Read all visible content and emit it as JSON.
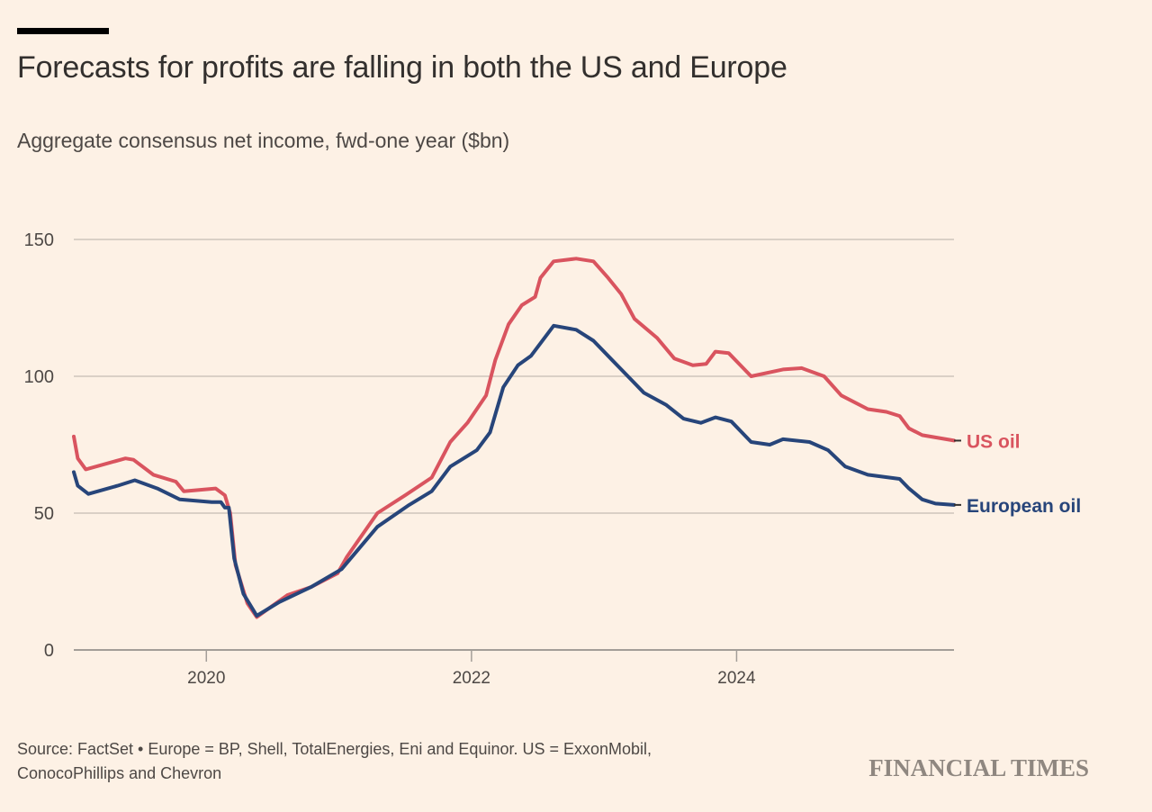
{
  "header": {
    "title": "Forecasts for profits are falling in both the US and Europe",
    "subtitle": "Aggregate consensus net income, fwd-one year ($bn)"
  },
  "footer": {
    "source": "Source: FactSet • Europe = BP, Shell, TotalEnergies, Eni and Equinor. US = ExxonMobil, ConocoPhillips and Chevron",
    "brand": "FINANCIAL TIMES"
  },
  "colors": {
    "background": "#fdf1e5",
    "us_oil": "#d9545f",
    "european_oil": "#27457a",
    "grid": "#cfc6bb",
    "axis": "#a39e98"
  },
  "chart_data": {
    "type": "line",
    "title": "Forecasts for profits are falling in both the US and Europe",
    "subtitle": "Aggregate consensus net income, fwd-one year ($bn)",
    "xlabel": "",
    "ylabel": "",
    "xlim": [
      2019.0,
      2025.64
    ],
    "ylim": [
      0,
      150
    ],
    "yticks": [
      0,
      50,
      100,
      150
    ],
    "ytick_labels": [
      "0",
      "50",
      "100",
      "150"
    ],
    "xticks": [
      2020,
      2022,
      2024
    ],
    "xtick_labels": [
      "2020",
      "2022",
      "2024"
    ],
    "grid": "horizontal",
    "legend": "direct labels at line ends (right)",
    "series": [
      {
        "name": "US oil",
        "color": "#d9545f",
        "points": [
          [
            2019.0,
            78
          ],
          [
            2019.03,
            70
          ],
          [
            2019.09,
            66
          ],
          [
            2019.39,
            70
          ],
          [
            2019.45,
            69.5
          ],
          [
            2019.6,
            64
          ],
          [
            2019.77,
            61.5
          ],
          [
            2019.83,
            58
          ],
          [
            2020.07,
            59
          ],
          [
            2020.14,
            56.5
          ],
          [
            2020.18,
            50
          ],
          [
            2020.22,
            31
          ],
          [
            2020.31,
            17
          ],
          [
            2020.38,
            12
          ],
          [
            2020.48,
            15.5
          ],
          [
            2020.61,
            20
          ],
          [
            2020.79,
            23
          ],
          [
            2020.99,
            28
          ],
          [
            2021.06,
            34
          ],
          [
            2021.29,
            50
          ],
          [
            2021.5,
            56.5
          ],
          [
            2021.7,
            63
          ],
          [
            2021.84,
            76
          ],
          [
            2021.97,
            83
          ],
          [
            2022.11,
            93
          ],
          [
            2022.18,
            106
          ],
          [
            2022.28,
            119
          ],
          [
            2022.38,
            126
          ],
          [
            2022.48,
            129
          ],
          [
            2022.52,
            136
          ],
          [
            2022.62,
            142
          ],
          [
            2022.79,
            143
          ],
          [
            2022.92,
            142
          ],
          [
            2023.03,
            136
          ],
          [
            2023.13,
            130
          ],
          [
            2023.23,
            121
          ],
          [
            2023.4,
            114
          ],
          [
            2023.53,
            106.5
          ],
          [
            2023.67,
            104
          ],
          [
            2023.77,
            104.5
          ],
          [
            2023.84,
            109
          ],
          [
            2023.94,
            108.5
          ],
          [
            2024.11,
            100
          ],
          [
            2024.35,
            102.5
          ],
          [
            2024.49,
            103
          ],
          [
            2024.66,
            100
          ],
          [
            2024.79,
            93
          ],
          [
            2024.99,
            88
          ],
          [
            2025.13,
            87
          ],
          [
            2025.23,
            85.5
          ],
          [
            2025.3,
            81
          ],
          [
            2025.4,
            78.5
          ],
          [
            2025.64,
            76.5
          ]
        ]
      },
      {
        "name": "European oil",
        "color": "#27457a",
        "points": [
          [
            2019.0,
            65
          ],
          [
            2019.03,
            60
          ],
          [
            2019.11,
            57
          ],
          [
            2019.33,
            60
          ],
          [
            2019.46,
            62
          ],
          [
            2019.63,
            59
          ],
          [
            2019.8,
            55
          ],
          [
            2020.04,
            54
          ],
          [
            2020.11,
            54
          ],
          [
            2020.14,
            52
          ],
          [
            2020.17,
            52
          ],
          [
            2020.21,
            33.5
          ],
          [
            2020.28,
            20.5
          ],
          [
            2020.38,
            12.5
          ],
          [
            2020.55,
            17.5
          ],
          [
            2020.79,
            23
          ],
          [
            2021.02,
            29.5
          ],
          [
            2021.29,
            45
          ],
          [
            2021.53,
            53
          ],
          [
            2021.7,
            58
          ],
          [
            2021.84,
            67
          ],
          [
            2022.04,
            73
          ],
          [
            2022.14,
            79.5
          ],
          [
            2022.24,
            96
          ],
          [
            2022.35,
            104
          ],
          [
            2022.45,
            107.5
          ],
          [
            2022.62,
            118.5
          ],
          [
            2022.79,
            117
          ],
          [
            2022.92,
            113
          ],
          [
            2023.06,
            106
          ],
          [
            2023.2,
            99
          ],
          [
            2023.3,
            94
          ],
          [
            2023.47,
            89.5
          ],
          [
            2023.6,
            84.5
          ],
          [
            2023.73,
            83
          ],
          [
            2023.84,
            85
          ],
          [
            2023.96,
            83.5
          ],
          [
            2024.11,
            76
          ],
          [
            2024.25,
            75
          ],
          [
            2024.35,
            77
          ],
          [
            2024.55,
            76
          ],
          [
            2024.69,
            73
          ],
          [
            2024.82,
            67
          ],
          [
            2024.99,
            64
          ],
          [
            2025.23,
            62.5
          ],
          [
            2025.3,
            59
          ],
          [
            2025.4,
            55
          ],
          [
            2025.5,
            53.5
          ],
          [
            2025.64,
            53
          ]
        ]
      }
    ]
  }
}
